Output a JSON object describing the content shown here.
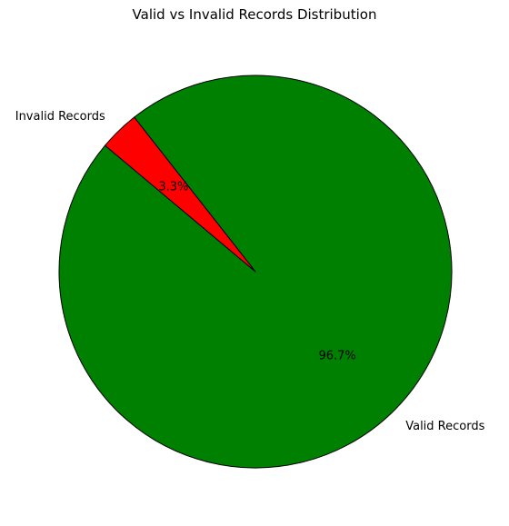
{
  "chart_data": {
    "type": "pie",
    "title": "Valid vs Invalid Records Distribution",
    "slices": [
      {
        "label": "Valid Records",
        "value": 96.7,
        "pct_label": "96.7%",
        "color": "#008000"
      },
      {
        "label": "Invalid Records",
        "value": 3.3,
        "pct_label": "3.3%",
        "color": "#ff0000"
      }
    ],
    "start_angle_deg": 140,
    "direction": "counterclockwise",
    "edge_color": "#000000",
    "legend": "none"
  }
}
